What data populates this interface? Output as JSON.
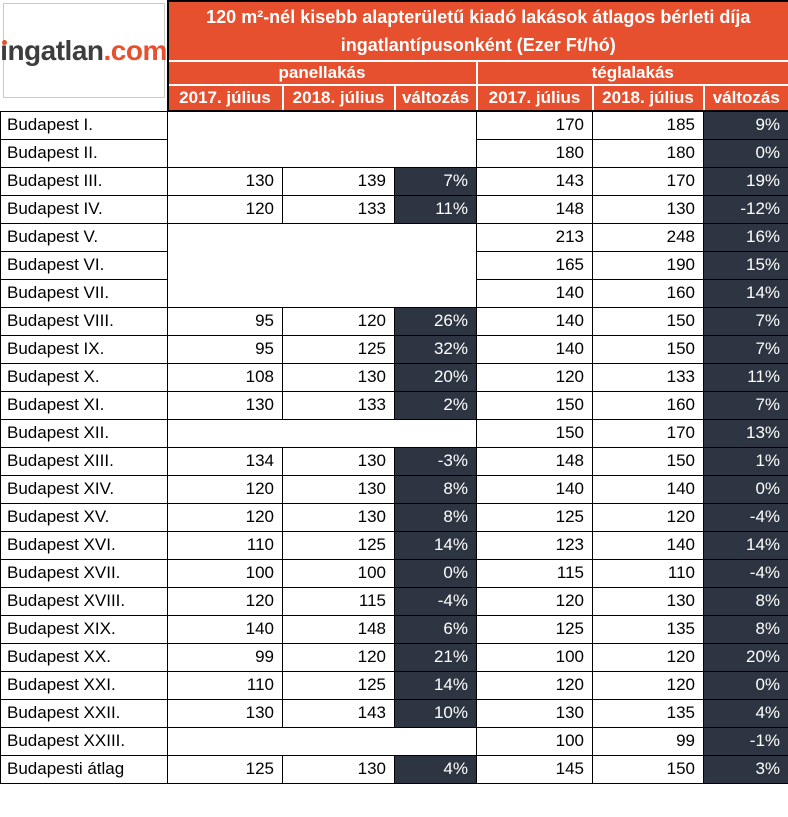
{
  "logo": {
    "text_primary": "ingatlan",
    "text_suffix": ".com"
  },
  "header": {
    "title_line1": "120 m²-nél kisebb alapterületű kiadó lakások átlagos bérleti díja",
    "title_line2": "ingatlantípusonként (Ezer Ft/hó)",
    "groups": [
      "panellakás",
      "téglalakás"
    ],
    "columns": [
      "2017. július",
      "2018. július",
      "változás"
    ]
  },
  "colors": {
    "accent_orange": "#E6502E",
    "change_cell_bg": "#2E3542",
    "logo_text": "#3D3D3D",
    "header_text": "#FFFFFF"
  },
  "chart_data": {
    "type": "table",
    "title": "120 m²-nél kisebb alapterületű kiadó lakások átlagos bérleti díja ingatlantípusonként (Ezer Ft/hó)",
    "unit": "Ezer Ft/hó",
    "column_groups": [
      "panellakás",
      "téglalakás"
    ],
    "columns": [
      "2017. július",
      "2018. július",
      "változás"
    ],
    "rows": [
      {
        "name": "Budapest I.",
        "panel": null,
        "tegla": {
          "y2017": 170,
          "y2018": 185,
          "change": "9%"
        }
      },
      {
        "name": "Budapest II.",
        "panel": null,
        "tegla": {
          "y2017": 180,
          "y2018": 180,
          "change": "0%"
        }
      },
      {
        "name": "Budapest III.",
        "panel": {
          "y2017": 130,
          "y2018": 139,
          "change": "7%"
        },
        "tegla": {
          "y2017": 143,
          "y2018": 170,
          "change": "19%"
        }
      },
      {
        "name": "Budapest IV.",
        "panel": {
          "y2017": 120,
          "y2018": 133,
          "change": "11%"
        },
        "tegla": {
          "y2017": 148,
          "y2018": 130,
          "change": "-12%"
        }
      },
      {
        "name": "Budapest V.",
        "panel": null,
        "tegla": {
          "y2017": 213,
          "y2018": 248,
          "change": "16%"
        }
      },
      {
        "name": "Budapest VI.",
        "panel": null,
        "tegla": {
          "y2017": 165,
          "y2018": 190,
          "change": "15%"
        }
      },
      {
        "name": "Budapest VII.",
        "panel": null,
        "tegla": {
          "y2017": 140,
          "y2018": 160,
          "change": "14%"
        }
      },
      {
        "name": "Budapest VIII.",
        "panel": {
          "y2017": 95,
          "y2018": 120,
          "change": "26%"
        },
        "tegla": {
          "y2017": 140,
          "y2018": 150,
          "change": "7%"
        }
      },
      {
        "name": "Budapest IX.",
        "panel": {
          "y2017": 95,
          "y2018": 125,
          "change": "32%"
        },
        "tegla": {
          "y2017": 140,
          "y2018": 150,
          "change": "7%"
        }
      },
      {
        "name": "Budapest X.",
        "panel": {
          "y2017": 108,
          "y2018": 130,
          "change": "20%"
        },
        "tegla": {
          "y2017": 120,
          "y2018": 133,
          "change": "11%"
        }
      },
      {
        "name": "Budapest XI.",
        "panel": {
          "y2017": 130,
          "y2018": 133,
          "change": "2%"
        },
        "tegla": {
          "y2017": 150,
          "y2018": 160,
          "change": "7%"
        }
      },
      {
        "name": "Budapest XII.",
        "panel": null,
        "tegla": {
          "y2017": 150,
          "y2018": 170,
          "change": "13%"
        }
      },
      {
        "name": "Budapest XIII.",
        "panel": {
          "y2017": 134,
          "y2018": 130,
          "change": "-3%"
        },
        "tegla": {
          "y2017": 148,
          "y2018": 150,
          "change": "1%"
        }
      },
      {
        "name": "Budapest XIV.",
        "panel": {
          "y2017": 120,
          "y2018": 130,
          "change": "8%"
        },
        "tegla": {
          "y2017": 140,
          "y2018": 140,
          "change": "0%"
        }
      },
      {
        "name": "Budapest XV.",
        "panel": {
          "y2017": 120,
          "y2018": 130,
          "change": "8%"
        },
        "tegla": {
          "y2017": 125,
          "y2018": 120,
          "change": "-4%"
        }
      },
      {
        "name": "Budapest XVI.",
        "panel": {
          "y2017": 110,
          "y2018": 125,
          "change": "14%"
        },
        "tegla": {
          "y2017": 123,
          "y2018": 140,
          "change": "14%"
        }
      },
      {
        "name": "Budapest XVII.",
        "panel": {
          "y2017": 100,
          "y2018": 100,
          "change": "0%"
        },
        "tegla": {
          "y2017": 115,
          "y2018": 110,
          "change": "-4%"
        }
      },
      {
        "name": "Budapest XVIII.",
        "panel": {
          "y2017": 120,
          "y2018": 115,
          "change": "-4%"
        },
        "tegla": {
          "y2017": 120,
          "y2018": 130,
          "change": "8%"
        }
      },
      {
        "name": "Budapest XIX.",
        "panel": {
          "y2017": 140,
          "y2018": 148,
          "change": "6%"
        },
        "tegla": {
          "y2017": 125,
          "y2018": 135,
          "change": "8%"
        }
      },
      {
        "name": "Budapest XX.",
        "panel": {
          "y2017": 99,
          "y2018": 120,
          "change": "21%"
        },
        "tegla": {
          "y2017": 100,
          "y2018": 120,
          "change": "20%"
        }
      },
      {
        "name": "Budapest XXI.",
        "panel": {
          "y2017": 110,
          "y2018": 125,
          "change": "14%"
        },
        "tegla": {
          "y2017": 120,
          "y2018": 120,
          "change": "0%"
        }
      },
      {
        "name": "Budapest XXII.",
        "panel": {
          "y2017": 130,
          "y2018": 143,
          "change": "10%"
        },
        "tegla": {
          "y2017": 130,
          "y2018": 135,
          "change": "4%"
        }
      },
      {
        "name": "Budapest XXIII.",
        "panel": null,
        "tegla": {
          "y2017": 100,
          "y2018": 99,
          "change": "-1%"
        }
      },
      {
        "name": "Budapesti átlag",
        "panel": {
          "y2017": 125,
          "y2018": 130,
          "change": "4%"
        },
        "tegla": {
          "y2017": 145,
          "y2018": 150,
          "change": "3%"
        }
      }
    ]
  }
}
